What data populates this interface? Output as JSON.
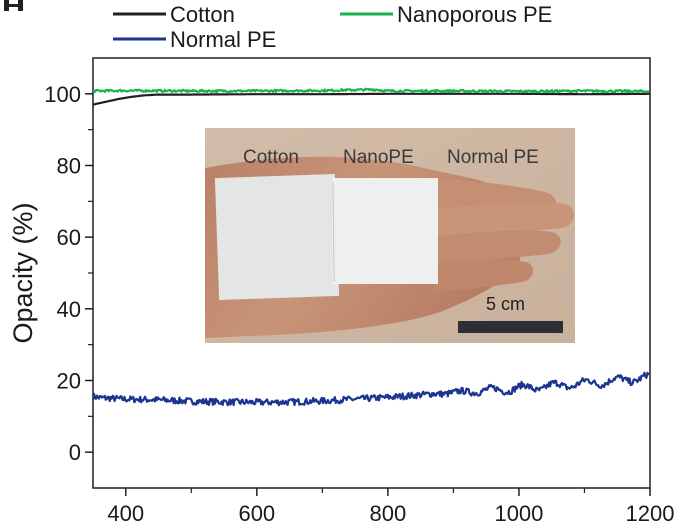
{
  "chart_data": {
    "type": "line",
    "title": "",
    "xlabel": "",
    "ylabel": "Opacity (%)",
    "xlim": [
      350,
      1200
    ],
    "ylim": [
      -10,
      110
    ],
    "xticks": [
      400,
      600,
      800,
      1000,
      1200
    ],
    "yticks": [
      0,
      20,
      40,
      60,
      80,
      100
    ],
    "grid": false,
    "legend": {
      "placement": "top"
    },
    "series": [
      {
        "name": "Cotton",
        "color": "#231f20",
        "x": [
          350,
          370,
          390,
          410,
          430,
          450,
          500,
          600,
          700,
          800,
          900,
          1000,
          1100,
          1200
        ],
        "y": [
          97,
          97.8,
          98.6,
          99.2,
          99.6,
          99.8,
          99.8,
          99.9,
          99.9,
          100.0,
          100.0,
          100.0,
          99.9,
          100.0
        ]
      },
      {
        "name": "Nanoporous PE",
        "color": "#1ab150",
        "x": [
          350,
          400,
          500,
          600,
          700,
          780,
          800,
          900,
          1000,
          1100,
          1200
        ],
        "y": [
          100.8,
          100.9,
          100.8,
          100.8,
          100.9,
          101.2,
          100.8,
          100.8,
          100.7,
          100.8,
          100.7
        ],
        "noise": 0.3
      },
      {
        "name": "Normal PE",
        "color": "#1b3591",
        "x": [
          350,
          360,
          380,
          400,
          450,
          500,
          550,
          600,
          650,
          700,
          750,
          800,
          850,
          900,
          950,
          1000,
          1050,
          1100,
          1150,
          1200
        ],
        "y": [
          15.6,
          15.2,
          15.0,
          14.8,
          14.6,
          14.2,
          14.0,
          13.9,
          14.0,
          14.3,
          14.8,
          15.3,
          16.0,
          16.6,
          17.2,
          17.8,
          18.4,
          19.2,
          20.0,
          20.9
        ],
        "noise": 0.9,
        "oscillation": {
          "start": 850,
          "amplitude": 0.9,
          "period": 48
        }
      }
    ]
  },
  "inset_photo": {
    "labels": [
      "Cotton",
      "NanoPE",
      "Normal PE"
    ],
    "scale_bar_label": "5 cm"
  }
}
